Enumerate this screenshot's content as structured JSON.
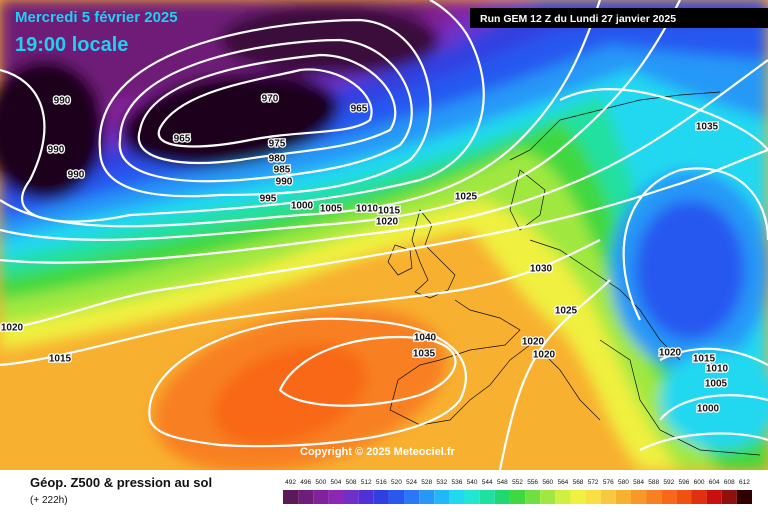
{
  "header": {
    "date": "Mercredi 5 février 2025",
    "time": "19:00 locale",
    "run": "Run GEM 12 Z du Lundi 27 janvier 2025"
  },
  "isobar_labels": [
    990,
    990,
    990,
    965,
    970,
    965,
    975,
    980,
    985,
    990,
    995,
    1000,
    1005,
    1010,
    1015,
    1020,
    1025,
    1035,
    1030,
    1025,
    1020,
    1015,
    1040,
    1035,
    1020,
    1020,
    1020,
    1015,
    1010,
    1005,
    1000
  ],
  "copyright": "Copyright © 2025 Meteociel.fr",
  "legend": {
    "title": "Géop. Z500 & pression au sol",
    "subtitle": "(+ 222h)",
    "scale": [
      492,
      496,
      500,
      504,
      508,
      512,
      516,
      520,
      524,
      528,
      532,
      536,
      540,
      544,
      548,
      552,
      556,
      560,
      564,
      568,
      572,
      576,
      580,
      584,
      588,
      592,
      596,
      600,
      604,
      608,
      612
    ],
    "colors": [
      "#5a1a5a",
      "#6e1e78",
      "#82229a",
      "#8c28b4",
      "#7030c8",
      "#5030d8",
      "#3040e0",
      "#2858f0",
      "#2a78f8",
      "#2898f8",
      "#20b8f8",
      "#20d8f0",
      "#20e8d0",
      "#20e0a0",
      "#20d870",
      "#40d840",
      "#70e040",
      "#a0e840",
      "#d0f040",
      "#f0f040",
      "#f8e040",
      "#f8c840",
      "#f8b030",
      "#f89828",
      "#f88020",
      "#f86818",
      "#f05010",
      "#e03010",
      "#c81010",
      "#901010",
      "#300000"
    ]
  }
}
